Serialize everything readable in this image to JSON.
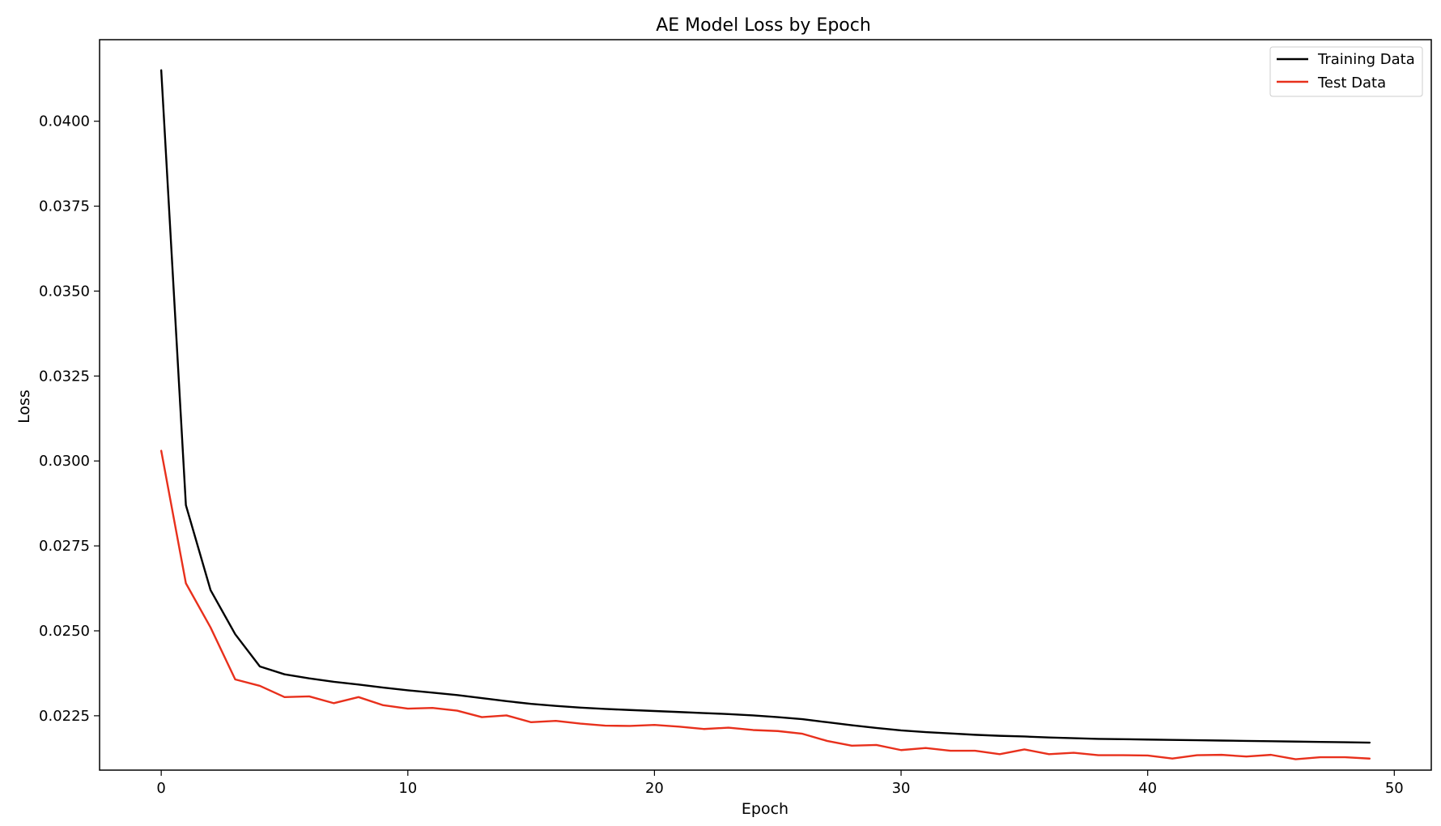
{
  "chart_data": {
    "type": "line",
    "title": "AE Model Loss by Epoch",
    "xlabel": "Epoch",
    "ylabel": "Loss",
    "xlim": [
      -2.5,
      51.5
    ],
    "ylim": [
      0.0209,
      0.0424
    ],
    "xticks": [
      0,
      10,
      20,
      30,
      40,
      50
    ],
    "xtick_labels": [
      "0",
      "10",
      "20",
      "30",
      "40",
      "50"
    ],
    "yticks": [
      0.0225,
      0.025,
      0.0275,
      0.03,
      0.0325,
      0.035,
      0.0375,
      0.04
    ],
    "ytick_labels": [
      "0.0225",
      "0.0250",
      "0.0275",
      "0.0300",
      "0.0325",
      "0.0350",
      "0.0375",
      "0.0400"
    ],
    "grid": false,
    "legend_position": "top-right",
    "x": [
      0,
      1,
      2,
      3,
      4,
      5,
      6,
      7,
      8,
      9,
      10,
      11,
      12,
      13,
      14,
      15,
      16,
      17,
      18,
      19,
      20,
      21,
      22,
      23,
      24,
      25,
      26,
      27,
      28,
      29,
      30,
      31,
      32,
      33,
      34,
      35,
      36,
      37,
      38,
      39,
      40,
      41,
      42,
      43,
      44,
      45,
      46,
      47,
      48,
      49
    ],
    "series": [
      {
        "name": "Training Data",
        "color": "#000000",
        "values": [
          0.0415,
          0.0287,
          0.0262,
          0.0249,
          0.02395,
          0.02372,
          0.0236,
          0.0235,
          0.02342,
          0.02333,
          0.02325,
          0.02318,
          0.02311,
          0.02302,
          0.02293,
          0.02285,
          0.02279,
          0.02274,
          0.0227,
          0.02267,
          0.02264,
          0.02261,
          0.02258,
          0.02255,
          0.02251,
          0.02246,
          0.0224,
          0.02231,
          0.02222,
          0.02214,
          0.02207,
          0.02202,
          0.02198,
          0.02194,
          0.02191,
          0.02189,
          0.02186,
          0.02184,
          0.02182,
          0.02181,
          0.0218,
          0.02179,
          0.02178,
          0.02177,
          0.02176,
          0.02175,
          0.02174,
          0.02173,
          0.02172,
          0.02171
        ]
      },
      {
        "name": "Test Data",
        "color": "#e8301c",
        "values": [
          0.0303,
          0.0264,
          0.0251,
          0.02357,
          0.02338,
          0.02305,
          0.02307,
          0.02287,
          0.02305,
          0.02281,
          0.02271,
          0.02273,
          0.02265,
          0.02246,
          0.02251,
          0.02231,
          0.02235,
          0.02227,
          0.02221,
          0.0222,
          0.02223,
          0.02218,
          0.02211,
          0.02215,
          0.02208,
          0.02205,
          0.02197,
          0.02176,
          0.02162,
          0.02164,
          0.02149,
          0.02155,
          0.02147,
          0.02147,
          0.02137,
          0.02151,
          0.02137,
          0.02141,
          0.02134,
          0.02134,
          0.02133,
          0.02124,
          0.02134,
          0.02135,
          0.0213,
          0.02135,
          0.02122,
          0.02128,
          0.02128,
          0.02124
        ]
      }
    ]
  }
}
